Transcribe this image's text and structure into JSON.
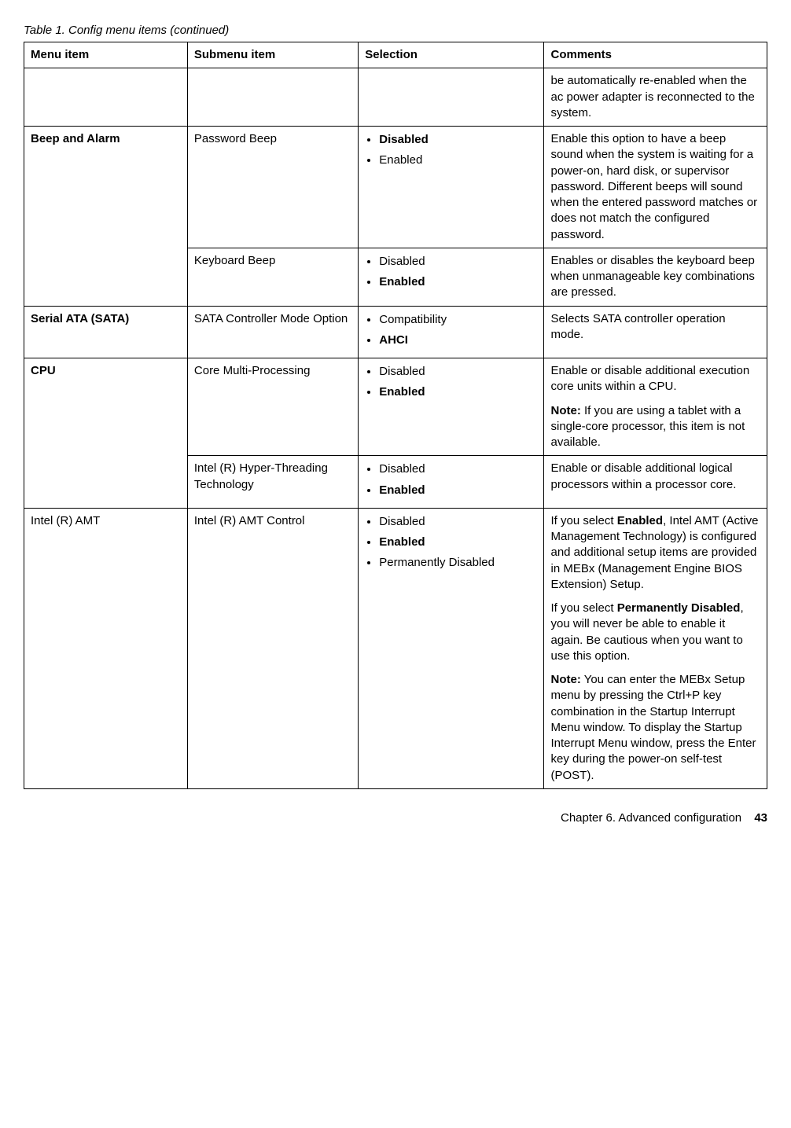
{
  "caption": "Table 1. Config menu items (continued)",
  "headers": {
    "menu": "Menu item",
    "submenu": "Submenu item",
    "selection": "Selection",
    "comments": "Comments"
  },
  "rows": {
    "r0": {
      "comments": "be automatically re-enabled when the ac power adapter is reconnected to the system."
    },
    "r1": {
      "menu": "Beep and Alarm",
      "submenu": "Password Beep",
      "selection_items": [
        "Disabled",
        "Enabled"
      ],
      "selection_bold": [
        true,
        false
      ],
      "comments": "Enable this option to have a beep sound when the system is waiting for a power-on, hard disk, or supervisor password. Different beeps will sound when the entered password matches or does not match the configured password."
    },
    "r2": {
      "submenu": "Keyboard Beep",
      "selection_items": [
        "Disabled",
        "Enabled"
      ],
      "selection_bold": [
        false,
        true
      ],
      "comments": "Enables or disables the keyboard beep when unmanageable key combinations are pressed."
    },
    "r3": {
      "menu": "Serial ATA (SATA)",
      "submenu": "SATA Controller Mode Option",
      "selection_items": [
        "Compatibility",
        "AHCI"
      ],
      "selection_bold": [
        false,
        true
      ],
      "comments": "Selects SATA controller operation mode."
    },
    "r4": {
      "menu": "CPU",
      "submenu": "Core Multi-Processing",
      "selection_items": [
        "Disabled",
        "Enabled"
      ],
      "selection_bold": [
        false,
        true
      ],
      "comments_p1": "Enable or disable additional execution core units within a CPU.",
      "comments_note_label": "Note:",
      "comments_note": " If you are using a tablet with a single-core processor, this item is not available."
    },
    "r5": {
      "submenu": "Intel (R) Hyper-Threading Technology",
      "selection_items": [
        "Disabled",
        "Enabled"
      ],
      "selection_bold": [
        false,
        true
      ],
      "comments": "Enable or disable additional logical processors within a processor core."
    },
    "r6": {
      "menu": "Intel (R) AMT",
      "submenu": "Intel (R) AMT Control",
      "selection_items": [
        "Disabled",
        "Enabled",
        "Permanently Disabled"
      ],
      "selection_bold": [
        false,
        true,
        false
      ],
      "c1": {
        "pre": "If you select ",
        "b": "Enabled",
        "post": ", Intel AMT (Active Management Technology) is configured and additional setup items are provided in MEBx (Management Engine BIOS Extension) Setup."
      },
      "c2": {
        "pre": "If you select ",
        "b": "Permanently Disabled",
        "post": ", you will never be able to enable it again. Be cautious when you want to use this option."
      },
      "c3": {
        "b": "Note:",
        "post": " You can enter the MEBx Setup menu by pressing the Ctrl+P key combination in the Startup Interrupt Menu window. To display the Startup Interrupt Menu window, press the Enter key during the power-on self-test (POST)."
      }
    }
  },
  "footer": {
    "chapter": "Chapter 6. Advanced configuration",
    "page": "43"
  }
}
